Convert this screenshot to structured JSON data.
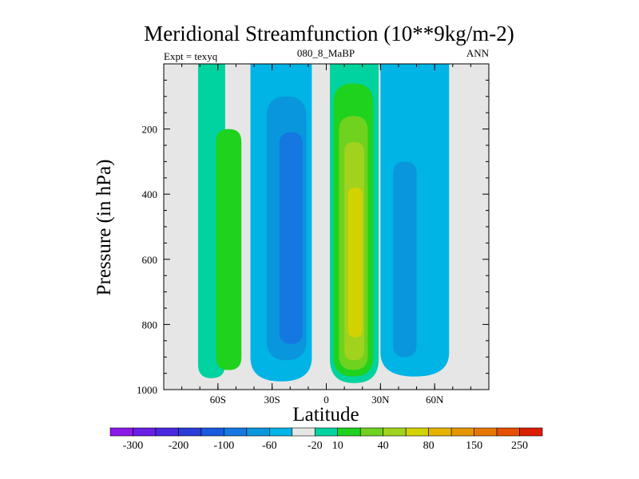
{
  "chart_data": {
    "type": "contour",
    "title": "Meridional Streamfunction (10**9kg/m-2)",
    "left_label": "Expt = texyq",
    "center_label": "080_8_MaBP",
    "right_label": "ANN",
    "xlabel": "Latitude",
    "ylabel": "Pressure (in hPa)",
    "xlim": [
      -90,
      90
    ],
    "ylim": [
      1000,
      0
    ],
    "x_ticks": [
      {
        "value": -60,
        "label": "60S"
      },
      {
        "value": -30,
        "label": "30S"
      },
      {
        "value": 0,
        "label": "0"
      },
      {
        "value": 30,
        "label": "30N"
      },
      {
        "value": 60,
        "label": "60N"
      }
    ],
    "y_ticks": [
      {
        "value": 200,
        "label": "200"
      },
      {
        "value": 400,
        "label": "400"
      },
      {
        "value": 600,
        "label": "600"
      },
      {
        "value": 800,
        "label": "800"
      },
      {
        "value": 1000,
        "label": "1000"
      }
    ],
    "background_color": "#e6e6e6",
    "colorbar": {
      "colors": [
        "#8c1ae6",
        "#6a1ee6",
        "#4a28e0",
        "#2a3cd8",
        "#1a5ae0",
        "#1478e0",
        "#0a96dc",
        "#00b4e6",
        "#e6e6e6",
        "#00d2a0",
        "#1ed21e",
        "#6ed21e",
        "#a0d21e",
        "#d2d200",
        "#e6b400",
        "#e69600",
        "#e67800",
        "#e65000",
        "#dc1e00"
      ],
      "labels": [
        {
          "after_box": 1,
          "text": "-300"
        },
        {
          "after_box": 3,
          "text": "-200"
        },
        {
          "after_box": 5,
          "text": "-100"
        },
        {
          "after_box": 7,
          "text": "-60"
        },
        {
          "after_box": 9,
          "text": "-20"
        },
        {
          "after_box": 10,
          "text": "10"
        },
        {
          "after_box": 12,
          "text": "40"
        },
        {
          "after_box": 14,
          "text": "80"
        },
        {
          "after_box": 16,
          "text": "150"
        },
        {
          "after_box": 18,
          "text": "250"
        }
      ]
    },
    "fields": [
      {
        "color": "#00d2a0",
        "lat_min": -71,
        "lat_max": -56,
        "p_top": 0,
        "p_bottom": 965
      },
      {
        "color": "#1ed21e",
        "lat_min": -61,
        "lat_max": -47,
        "p_top": 200,
        "p_bottom": 940
      },
      {
        "color": "#00b4e6",
        "lat_min": -42,
        "lat_max": -8,
        "p_top": 0,
        "p_bottom": 975
      },
      {
        "color": "#0a96dc",
        "lat_min": -33,
        "lat_max": -11,
        "p_top": 100,
        "p_bottom": 910
      },
      {
        "color": "#1478e0",
        "lat_min": -26,
        "lat_max": -13,
        "p_top": 210,
        "p_bottom": 860
      },
      {
        "color": "#00d2a0",
        "lat_min": 2,
        "lat_max": 29,
        "p_top": 0,
        "p_bottom": 980
      },
      {
        "color": "#1ed21e",
        "lat_min": 4,
        "lat_max": 26,
        "p_top": 60,
        "p_bottom": 960
      },
      {
        "color": "#6ed21e",
        "lat_min": 7,
        "lat_max": 23,
        "p_top": 160,
        "p_bottom": 940
      },
      {
        "color": "#a0d21e",
        "lat_min": 10,
        "lat_max": 21,
        "p_top": 240,
        "p_bottom": 910
      },
      {
        "color": "#d2d200",
        "lat_min": 12,
        "lat_max": 20,
        "p_top": 380,
        "p_bottom": 840
      },
      {
        "color": "#00b4e6",
        "lat_min": 30,
        "lat_max": 68,
        "p_top": 0,
        "p_bottom": 960
      },
      {
        "color": "#0a96dc",
        "lat_min": 37,
        "lat_max": 50,
        "p_top": 300,
        "p_bottom": 900
      }
    ]
  }
}
